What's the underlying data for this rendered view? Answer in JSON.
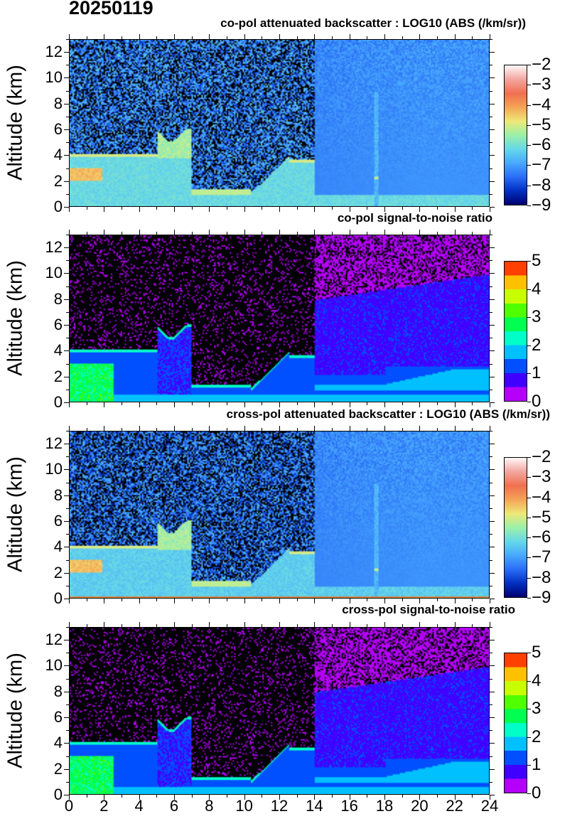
{
  "date": "20250119",
  "chart_data": [
    {
      "type": "heatmap",
      "title": "co-pol attenuated backscatter : LOG10 (ABS (/km/sr))",
      "ylabel": "Altitude (km)",
      "xlabel": "",
      "xlim": [
        0,
        24
      ],
      "ylim": [
        0,
        13
      ],
      "yticks": [
        "0",
        "2",
        "4",
        "6",
        "8",
        "10",
        "12"
      ],
      "colorbar": {
        "kind": "backscatter",
        "range": [
          -9,
          -2
        ],
        "ticks": [
          "-2",
          "-3",
          "-4",
          "-5",
          "-6",
          "-7",
          "-8",
          "-9"
        ]
      }
    },
    {
      "type": "heatmap",
      "title": "co-pol signal-to-noise ratio",
      "ylabel": "Altitude (km)",
      "xlabel": "",
      "xlim": [
        0,
        24
      ],
      "ylim": [
        0,
        13
      ],
      "yticks": [
        "0",
        "2",
        "4",
        "6",
        "8",
        "10",
        "12"
      ],
      "colorbar": {
        "kind": "snr",
        "range": [
          0,
          5
        ],
        "ticks": [
          "5",
          "4",
          "3",
          "2",
          "1",
          "0"
        ]
      }
    },
    {
      "type": "heatmap",
      "title": "cross-pol attenuated backscatter : LOG10 (ABS (/km/sr))",
      "ylabel": "Altitude (km)",
      "xlabel": "",
      "xlim": [
        0,
        24
      ],
      "ylim": [
        0,
        13
      ],
      "yticks": [
        "0",
        "2",
        "4",
        "6",
        "8",
        "10",
        "12"
      ],
      "colorbar": {
        "kind": "backscatter",
        "range": [
          -9,
          -2
        ],
        "ticks": [
          "-2",
          "-3",
          "-4",
          "-5",
          "-6",
          "-7",
          "-8",
          "-9"
        ]
      }
    },
    {
      "type": "heatmap",
      "title": "cross-pol signal-to-noise ratio",
      "ylabel": "Altitude (km)",
      "xlabel": "",
      "xlim": [
        0,
        24
      ],
      "ylim": [
        0,
        13
      ],
      "yticks": [
        "0",
        "2",
        "4",
        "6",
        "8",
        "10",
        "12"
      ],
      "xticks": [
        "0",
        "2",
        "4",
        "6",
        "8",
        "10",
        "12",
        "14",
        "16",
        "18",
        "20",
        "22",
        "24"
      ],
      "colorbar": {
        "kind": "snr",
        "range": [
          0,
          5
        ],
        "ticks": [
          "5",
          "4",
          "3",
          "2",
          "1",
          "0"
        ]
      }
    }
  ],
  "colormaps": {
    "backscatter": [
      "#000070",
      "#0030c0",
      "#2a6ef5",
      "#48a8ff",
      "#66d8e8",
      "#9cf0a8",
      "#eee878",
      "#f4a456",
      "#f07050",
      "#f2a6a0",
      "#fff8f8"
    ],
    "snr": [
      "#b400f8",
      "#4000ff",
      "#0050ff",
      "#00c0ff",
      "#00ffc8",
      "#00ff50",
      "#50ff00",
      "#c8ff00",
      "#ffc000",
      "#ff4000"
    ]
  }
}
